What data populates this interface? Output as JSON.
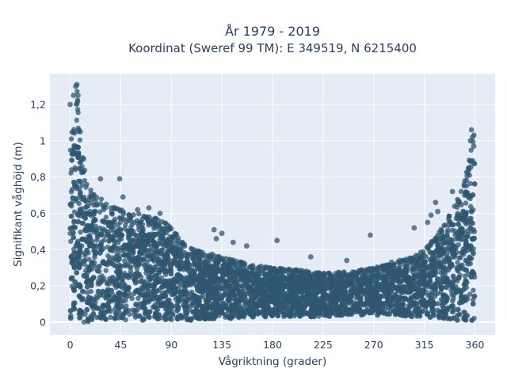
{
  "chart_data": {
    "type": "scatter",
    "title": [
      "År 1979 - 2019",
      "Koordinat (Sweref 99 TM): E 349519, N 6215400"
    ],
    "xlabel": "Vågriktning (grader)",
    "ylabel": "Signifikant våghöjd (m)",
    "xlim": [
      -18,
      378
    ],
    "ylim": [
      -0.07,
      1.37
    ],
    "xticks": [
      0,
      45,
      90,
      135,
      180,
      225,
      270,
      315,
      360
    ],
    "xtick_labels": [
      "0",
      "45",
      "90",
      "135",
      "180",
      "225",
      "270",
      "315",
      "360"
    ],
    "yticks": [
      0,
      0.2,
      0.4,
      0.6,
      0.8,
      1,
      1.2
    ],
    "ytick_labels": [
      "0",
      "0,2",
      "0,4",
      "0,6",
      "0,8",
      "1",
      "1,2"
    ],
    "grid": true,
    "marker_color": "#2f5670",
    "background_color": "#e5ecf6",
    "envelope": {
      "x": [
        0,
        3,
        6,
        10,
        15,
        22,
        30,
        40,
        50,
        60,
        70,
        80,
        90,
        100,
        110,
        125,
        140,
        160,
        180,
        200,
        225,
        250,
        270,
        290,
        305,
        315,
        325,
        335,
        342,
        348,
        352,
        356,
        360
      ],
      "upper": [
        0.98,
        1.16,
        1.3,
        0.95,
        0.76,
        0.7,
        0.67,
        0.63,
        0.61,
        0.6,
        0.58,
        0.57,
        0.52,
        0.44,
        0.4,
        0.38,
        0.35,
        0.32,
        0.3,
        0.29,
        0.27,
        0.28,
        0.3,
        0.33,
        0.36,
        0.4,
        0.47,
        0.56,
        0.65,
        0.73,
        0.82,
        0.95,
        1.05
      ],
      "lower": [
        0.0,
        0.0,
        0.0,
        0.0,
        0.0,
        0.0,
        0.0,
        0.01,
        0.01,
        0.01,
        0.01,
        0.01,
        0.01,
        0.01,
        0.01,
        0.02,
        0.02,
        0.02,
        0.03,
        0.03,
        0.03,
        0.04,
        0.04,
        0.04,
        0.03,
        0.03,
        0.02,
        0.02,
        0.01,
        0.01,
        0.01,
        0.01,
        0.0
      ]
    },
    "outliers": [
      {
        "x": 0,
        "y": 1.2
      },
      {
        "x": 3,
        "y": 1.25
      },
      {
        "x": 5,
        "y": 1.3
      },
      {
        "x": 6,
        "y": 1.31
      },
      {
        "x": 7,
        "y": 1.25
      },
      {
        "x": 9,
        "y": 1.05
      },
      {
        "x": 12,
        "y": 0.9
      },
      {
        "x": 27,
        "y": 0.79
      },
      {
        "x": 44,
        "y": 0.79
      },
      {
        "x": 47,
        "y": 0.69
      },
      {
        "x": 60,
        "y": 0.62
      },
      {
        "x": 70,
        "y": 0.63
      },
      {
        "x": 80,
        "y": 0.6
      },
      {
        "x": 128,
        "y": 0.51
      },
      {
        "x": 130,
        "y": 0.46
      },
      {
        "x": 135,
        "y": 0.49
      },
      {
        "x": 145,
        "y": 0.44
      },
      {
        "x": 157,
        "y": 0.42
      },
      {
        "x": 184,
        "y": 0.45
      },
      {
        "x": 214,
        "y": 0.36
      },
      {
        "x": 246,
        "y": 0.34
      },
      {
        "x": 267,
        "y": 0.48
      },
      {
        "x": 286,
        "y": 0.33
      },
      {
        "x": 293,
        "y": 0.34
      },
      {
        "x": 306,
        "y": 0.52
      },
      {
        "x": 318,
        "y": 0.55
      },
      {
        "x": 321,
        "y": 0.59
      },
      {
        "x": 325,
        "y": 0.66
      },
      {
        "x": 327,
        "y": 0.61
      },
      {
        "x": 340,
        "y": 0.72
      },
      {
        "x": 356,
        "y": 1.0
      },
      {
        "x": 357,
        "y": 1.06
      },
      {
        "x": 358,
        "y": 1.02
      },
      {
        "x": 359,
        "y": 0.97
      }
    ]
  }
}
